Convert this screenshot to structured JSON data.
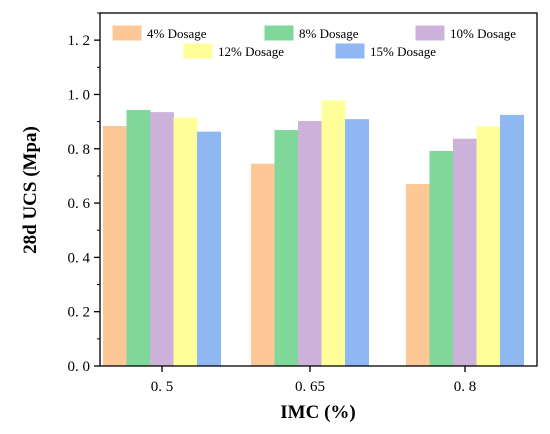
{
  "chart_data": {
    "type": "bar",
    "categories": [
      "0. 5",
      "0. 65",
      "0. 8"
    ],
    "series": [
      {
        "name": "4% Dosage",
        "color": "#FDC896",
        "values": [
          0.883,
          0.744,
          0.669
        ]
      },
      {
        "name": "8% Dosage",
        "color": "#7FD89A",
        "values": [
          0.942,
          0.868,
          0.791
        ]
      },
      {
        "name": "10% Dosage",
        "color": "#CCB1DB",
        "values": [
          0.934,
          0.901,
          0.836
        ]
      },
      {
        "name": "12% Dosage",
        "color": "#FFFF99",
        "values": [
          0.914,
          0.977,
          0.882
        ]
      },
      {
        "name": "15% Dosage",
        "color": "#8FB8F3",
        "values": [
          0.862,
          0.908,
          0.924
        ]
      }
    ],
    "xlabel": "IMC (%)",
    "ylabel": "28d UCS (Mpa)",
    "ylim": [
      0,
      1.3
    ],
    "yticks": [
      "0. 0",
      "0. 2",
      "0. 4",
      "0. 6",
      "0. 8",
      "1. 0",
      "1. 2"
    ],
    "ytick_values": [
      0,
      0.2,
      0.4,
      0.6,
      0.8,
      1.0,
      1.2
    ],
    "legend_position": "top",
    "grid": false
  }
}
